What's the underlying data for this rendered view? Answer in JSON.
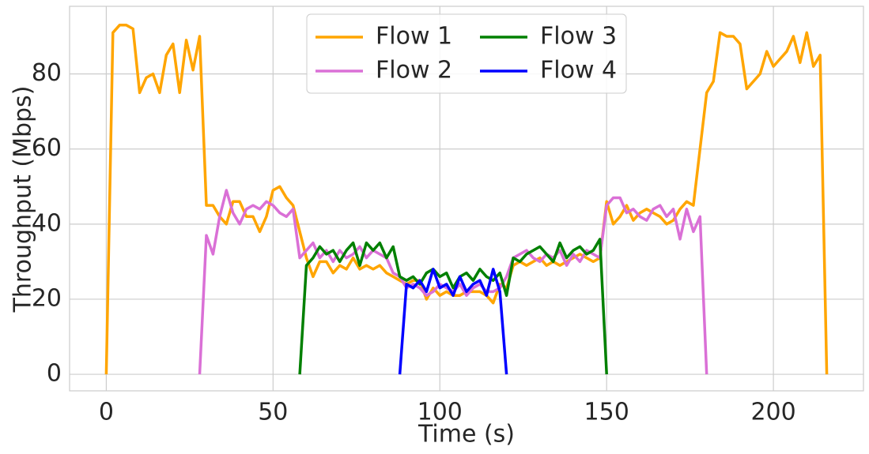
{
  "chart_data": {
    "type": "line",
    "xlabel": "Time (s)",
    "ylabel": "Throughput (Mbps)",
    "xlim": [
      -11,
      227
    ],
    "ylim": [
      -4.4,
      98
    ],
    "xticks": [
      0,
      50,
      100,
      150,
      200
    ],
    "yticks": [
      0,
      20,
      40,
      60,
      80
    ],
    "grid": true,
    "legend": "upper center",
    "legend_columns": 2,
    "x": [
      0,
      2,
      4,
      6,
      8,
      10,
      12,
      14,
      16,
      18,
      20,
      22,
      24,
      26,
      28,
      30,
      32,
      34,
      36,
      38,
      40,
      42,
      44,
      46,
      48,
      50,
      52,
      54,
      56,
      58,
      60,
      62,
      64,
      66,
      68,
      70,
      72,
      74,
      76,
      78,
      80,
      82,
      84,
      86,
      88,
      90,
      92,
      94,
      96,
      98,
      100,
      102,
      104,
      106,
      108,
      110,
      112,
      114,
      116,
      118,
      120,
      122,
      124,
      126,
      128,
      130,
      132,
      134,
      136,
      138,
      140,
      142,
      144,
      146,
      148,
      150,
      152,
      154,
      156,
      158,
      160,
      162,
      164,
      166,
      168,
      170,
      172,
      174,
      176,
      178,
      180,
      182,
      184,
      186,
      188,
      190,
      192,
      194,
      196,
      198,
      200,
      202,
      204,
      206,
      208,
      210,
      212,
      214,
      216,
      218
    ],
    "series": [
      {
        "name": "Flow 1",
        "color": "#FFA500",
        "values": [
          0,
          91,
          93,
          93,
          92,
          75,
          79,
          80,
          75,
          85,
          88,
          75,
          89,
          81,
          90,
          45,
          45,
          42,
          40,
          46,
          46,
          42,
          42,
          38,
          42,
          49,
          50,
          47,
          45,
          38,
          31,
          26,
          30,
          30,
          27,
          29,
          28,
          31,
          28,
          29,
          28,
          29,
          27,
          26,
          25,
          24,
          25,
          25,
          20,
          23,
          21,
          22,
          21,
          21,
          22,
          22,
          22,
          21,
          19,
          24,
          23,
          29,
          30,
          29,
          30,
          31,
          29,
          30,
          29,
          30,
          31,
          32,
          31,
          30,
          31,
          46,
          40,
          42,
          45,
          41,
          43,
          44,
          43,
          42,
          40,
          41,
          44,
          46,
          45,
          60,
          75,
          78,
          91,
          90,
          90,
          88,
          76,
          78,
          80,
          86,
          82,
          84,
          86,
          90,
          83,
          91,
          82,
          85,
          0,
          null
        ]
      },
      {
        "name": "Flow 2",
        "color": "#DA70D6",
        "values": [
          null,
          null,
          null,
          null,
          null,
          null,
          null,
          null,
          null,
          null,
          null,
          null,
          null,
          null,
          0,
          37,
          32,
          42,
          49,
          43,
          40,
          44,
          45,
          44,
          46,
          45,
          43,
          42,
          44,
          31,
          33,
          35,
          31,
          33,
          30,
          33,
          31,
          32,
          34,
          31,
          33,
          32,
          31,
          27,
          26,
          23,
          24,
          23,
          21,
          22,
          24,
          23,
          22,
          24,
          21,
          23,
          24,
          22,
          22,
          23,
          26,
          31,
          32,
          33,
          31,
          30,
          32,
          31,
          33,
          29,
          32,
          30,
          33,
          32,
          31,
          45,
          47,
          47,
          43,
          44,
          42,
          41,
          44,
          45,
          42,
          44,
          36,
          44,
          38,
          42,
          0,
          null,
          null,
          null,
          null,
          null,
          null,
          null,
          null,
          null,
          null,
          null,
          null,
          null,
          null,
          null,
          null,
          null,
          null,
          null
        ]
      },
      {
        "name": "Flow 3",
        "color": "#008000",
        "values": [
          null,
          null,
          null,
          null,
          null,
          null,
          null,
          null,
          null,
          null,
          null,
          null,
          null,
          null,
          null,
          null,
          null,
          null,
          null,
          null,
          null,
          null,
          null,
          null,
          null,
          null,
          null,
          null,
          null,
          0,
          29,
          31,
          34,
          32,
          33,
          30,
          33,
          35,
          29,
          35,
          33,
          35,
          31,
          34,
          26,
          25,
          26,
          24,
          27,
          28,
          26,
          27,
          23,
          26,
          27,
          25,
          28,
          26,
          25,
          27,
          21,
          31,
          30,
          32,
          33,
          34,
          32,
          30,
          35,
          31,
          33,
          34,
          32,
          33,
          36,
          0,
          null,
          null,
          null,
          null,
          null,
          null,
          null,
          null,
          null,
          null,
          null,
          null,
          null,
          null,
          null,
          null,
          null,
          null,
          null,
          null,
          null,
          null,
          null,
          null,
          null,
          null,
          null,
          null,
          null,
          null,
          null,
          null,
          null,
          null
        ]
      },
      {
        "name": "Flow 4",
        "color": "#0000FF",
        "values": [
          null,
          null,
          null,
          null,
          null,
          null,
          null,
          null,
          null,
          null,
          null,
          null,
          null,
          null,
          null,
          null,
          null,
          null,
          null,
          null,
          null,
          null,
          null,
          null,
          null,
          null,
          null,
          null,
          null,
          null,
          null,
          null,
          null,
          null,
          null,
          null,
          null,
          null,
          null,
          null,
          null,
          null,
          null,
          null,
          0,
          24,
          23,
          25,
          22,
          28,
          23,
          24,
          21,
          26,
          22,
          24,
          25,
          21,
          28,
          22,
          0,
          null,
          null,
          null,
          null,
          null,
          null,
          null,
          null,
          null,
          null,
          null,
          null,
          null,
          null,
          null,
          null,
          null,
          null,
          null,
          null,
          null,
          null,
          null,
          null,
          null,
          null,
          null,
          null,
          null,
          null,
          null,
          null,
          null,
          null,
          null,
          null,
          null,
          null,
          null,
          null,
          null,
          null,
          null,
          null,
          null,
          null,
          null,
          null,
          null
        ]
      }
    ]
  }
}
